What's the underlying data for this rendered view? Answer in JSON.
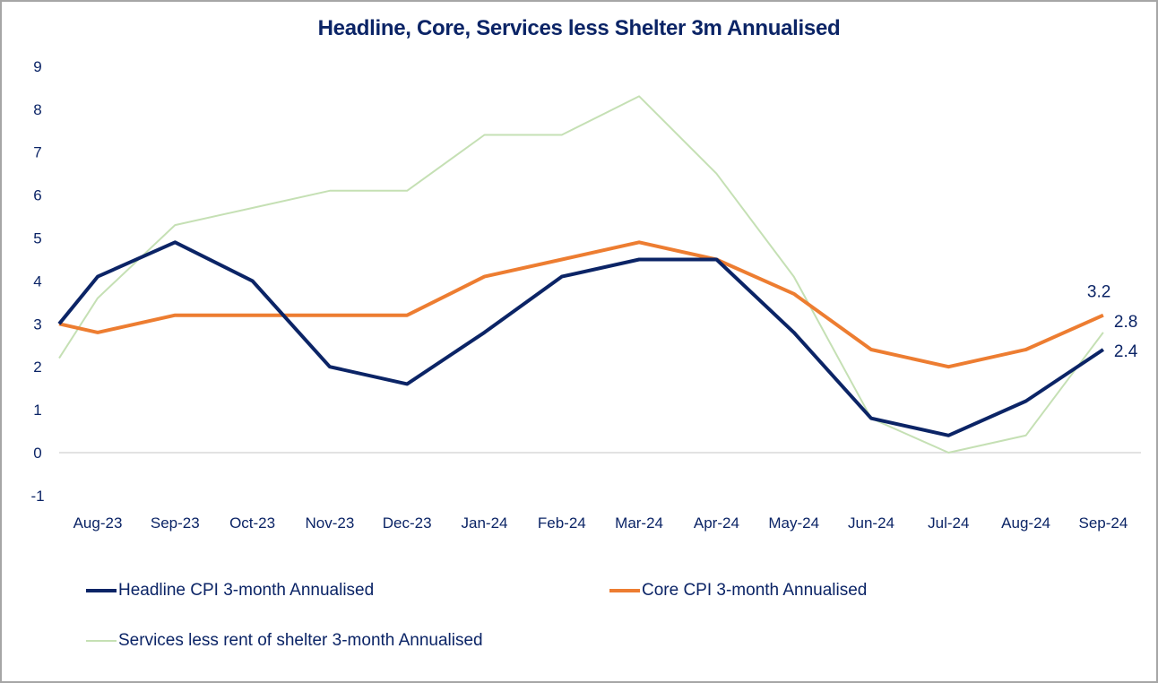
{
  "chart_data": {
    "type": "line",
    "title": "Headline, Core, Services less Shelter 3m Annualised",
    "xlabel": "",
    "ylabel": "",
    "ylim": [
      -1,
      9
    ],
    "yticks": [
      "9",
      "8",
      "7",
      "6",
      "5",
      "4",
      "3",
      "2",
      "1",
      "0",
      "-1"
    ],
    "ytick_values": [
      9,
      8,
      7,
      6,
      5,
      4,
      3,
      2,
      1,
      0,
      -1
    ],
    "grid": "zero-line only",
    "categories": [
      "",
      "Aug-23",
      "Sep-23",
      "Oct-23",
      "Nov-23",
      "Dec-23",
      "Jan-24",
      "Feb-24",
      "Mar-24",
      "Apr-24",
      "May-24",
      "Jun-24",
      "Jul-24",
      "Aug-24",
      "Sep-24"
    ],
    "series": [
      {
        "name": "Headline CPI 3-month Annualised",
        "color": "#0b2466",
        "values": [
          3.0,
          4.1,
          4.9,
          4.0,
          2.0,
          1.6,
          2.8,
          4.1,
          4.5,
          4.5,
          2.8,
          0.8,
          0.4,
          1.2,
          2.4
        ],
        "end_label": "2.4"
      },
      {
        "name": "Core CPI 3-month Annualised",
        "color": "#ed7d31",
        "values": [
          3.0,
          2.8,
          3.2,
          3.2,
          3.2,
          3.2,
          4.1,
          4.5,
          4.9,
          4.5,
          3.7,
          2.4,
          2.0,
          2.4,
          3.2
        ],
        "end_label": "3.2"
      },
      {
        "name": "Services less rent of shelter 3-month Annualised",
        "color": "#c5e0b4",
        "values": [
          2.2,
          3.6,
          5.3,
          5.7,
          6.1,
          6.1,
          7.4,
          7.4,
          8.3,
          6.5,
          4.1,
          0.8,
          0.0,
          0.4,
          2.8
        ],
        "end_label": "2.8"
      }
    ],
    "legend_position": "bottom"
  }
}
